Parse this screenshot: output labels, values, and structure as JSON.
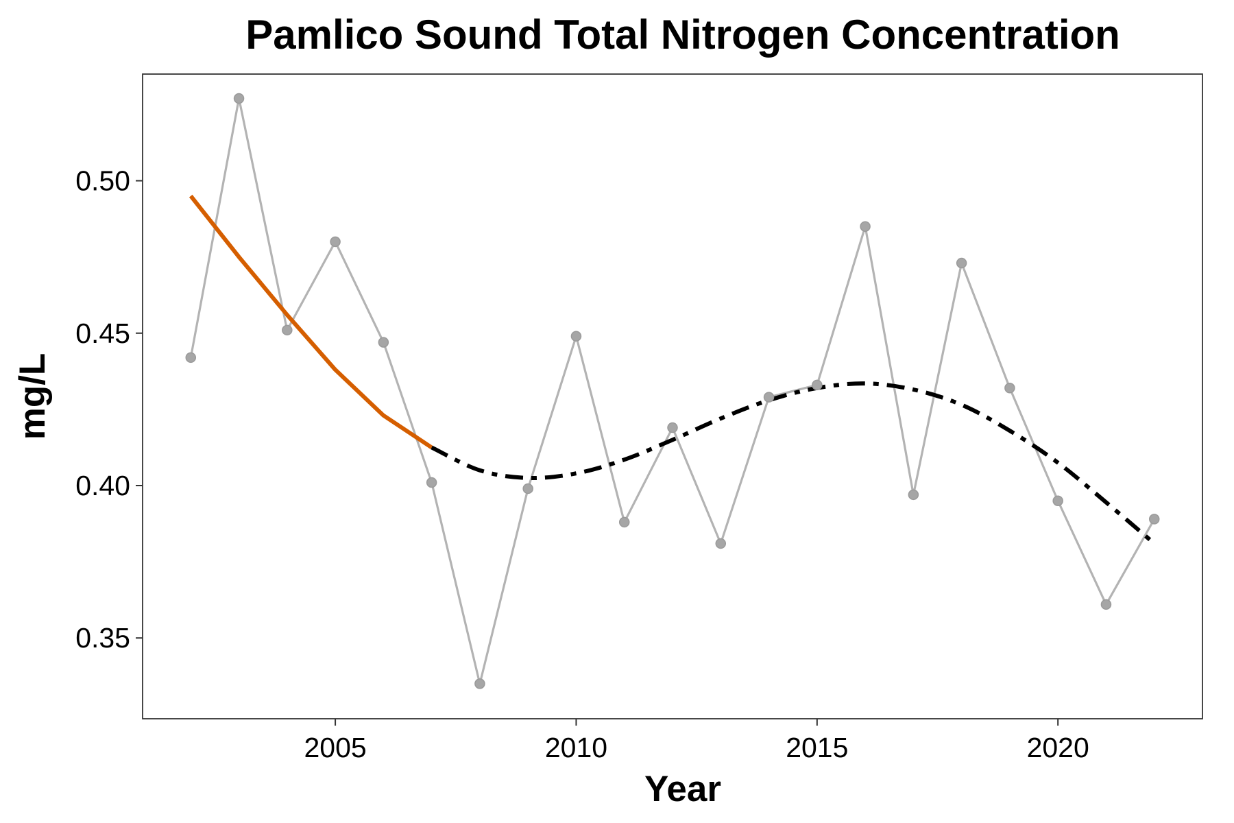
{
  "chart_data": {
    "type": "line",
    "title": "Pamlico Sound Total Nitrogen Concentration",
    "xlabel": "Year",
    "ylabel": "mg/L",
    "xlim": [
      2001.0,
      2023.0
    ],
    "ylim": [
      0.3235,
      0.535
    ],
    "x_ticks": [
      2005,
      2010,
      2015,
      2020
    ],
    "x_tick_labels": [
      "2005",
      "2010",
      "2015",
      "2020"
    ],
    "y_ticks": [
      0.35,
      0.4,
      0.45,
      0.5
    ],
    "y_tick_labels": [
      "0.35",
      "0.40",
      "0.45",
      "0.50"
    ],
    "grid": false,
    "legend": "none",
    "series": [
      {
        "style": "gray line with points",
        "color": "#b3b3b3",
        "point_color": "#a6a6a6",
        "x": [
          2002,
          2003,
          2004,
          2005,
          2006,
          2007,
          2008,
          2009,
          2010,
          2011,
          2012,
          2013,
          2014,
          2015,
          2016,
          2017,
          2018,
          2019,
          2020,
          2021,
          2022
        ],
        "y": [
          0.442,
          0.527,
          0.451,
          0.48,
          0.447,
          0.401,
          0.335,
          0.399,
          0.449,
          0.388,
          0.419,
          0.381,
          0.429,
          0.433,
          0.485,
          0.397,
          0.473,
          0.432,
          0.395,
          0.361,
          0.389
        ]
      },
      {
        "style": "solid trend",
        "color": "#d55e00",
        "x": [
          2002,
          2003,
          2004,
          2005,
          2006,
          2007
        ],
        "y": [
          0.495,
          0.475,
          0.456,
          0.438,
          0.423,
          0.4125
        ]
      },
      {
        "style": "dashed trend",
        "color": "#000000",
        "x": [
          2007,
          2008,
          2009,
          2010,
          2011,
          2012,
          2013,
          2014,
          2015,
          2016,
          2017,
          2018,
          2019,
          2020,
          2021,
          2022
        ],
        "y": [
          0.4125,
          0.405,
          0.4025,
          0.404,
          0.4085,
          0.415,
          0.422,
          0.428,
          0.432,
          0.4335,
          0.4315,
          0.4265,
          0.418,
          0.4075,
          0.3945,
          0.381
        ]
      }
    ]
  }
}
